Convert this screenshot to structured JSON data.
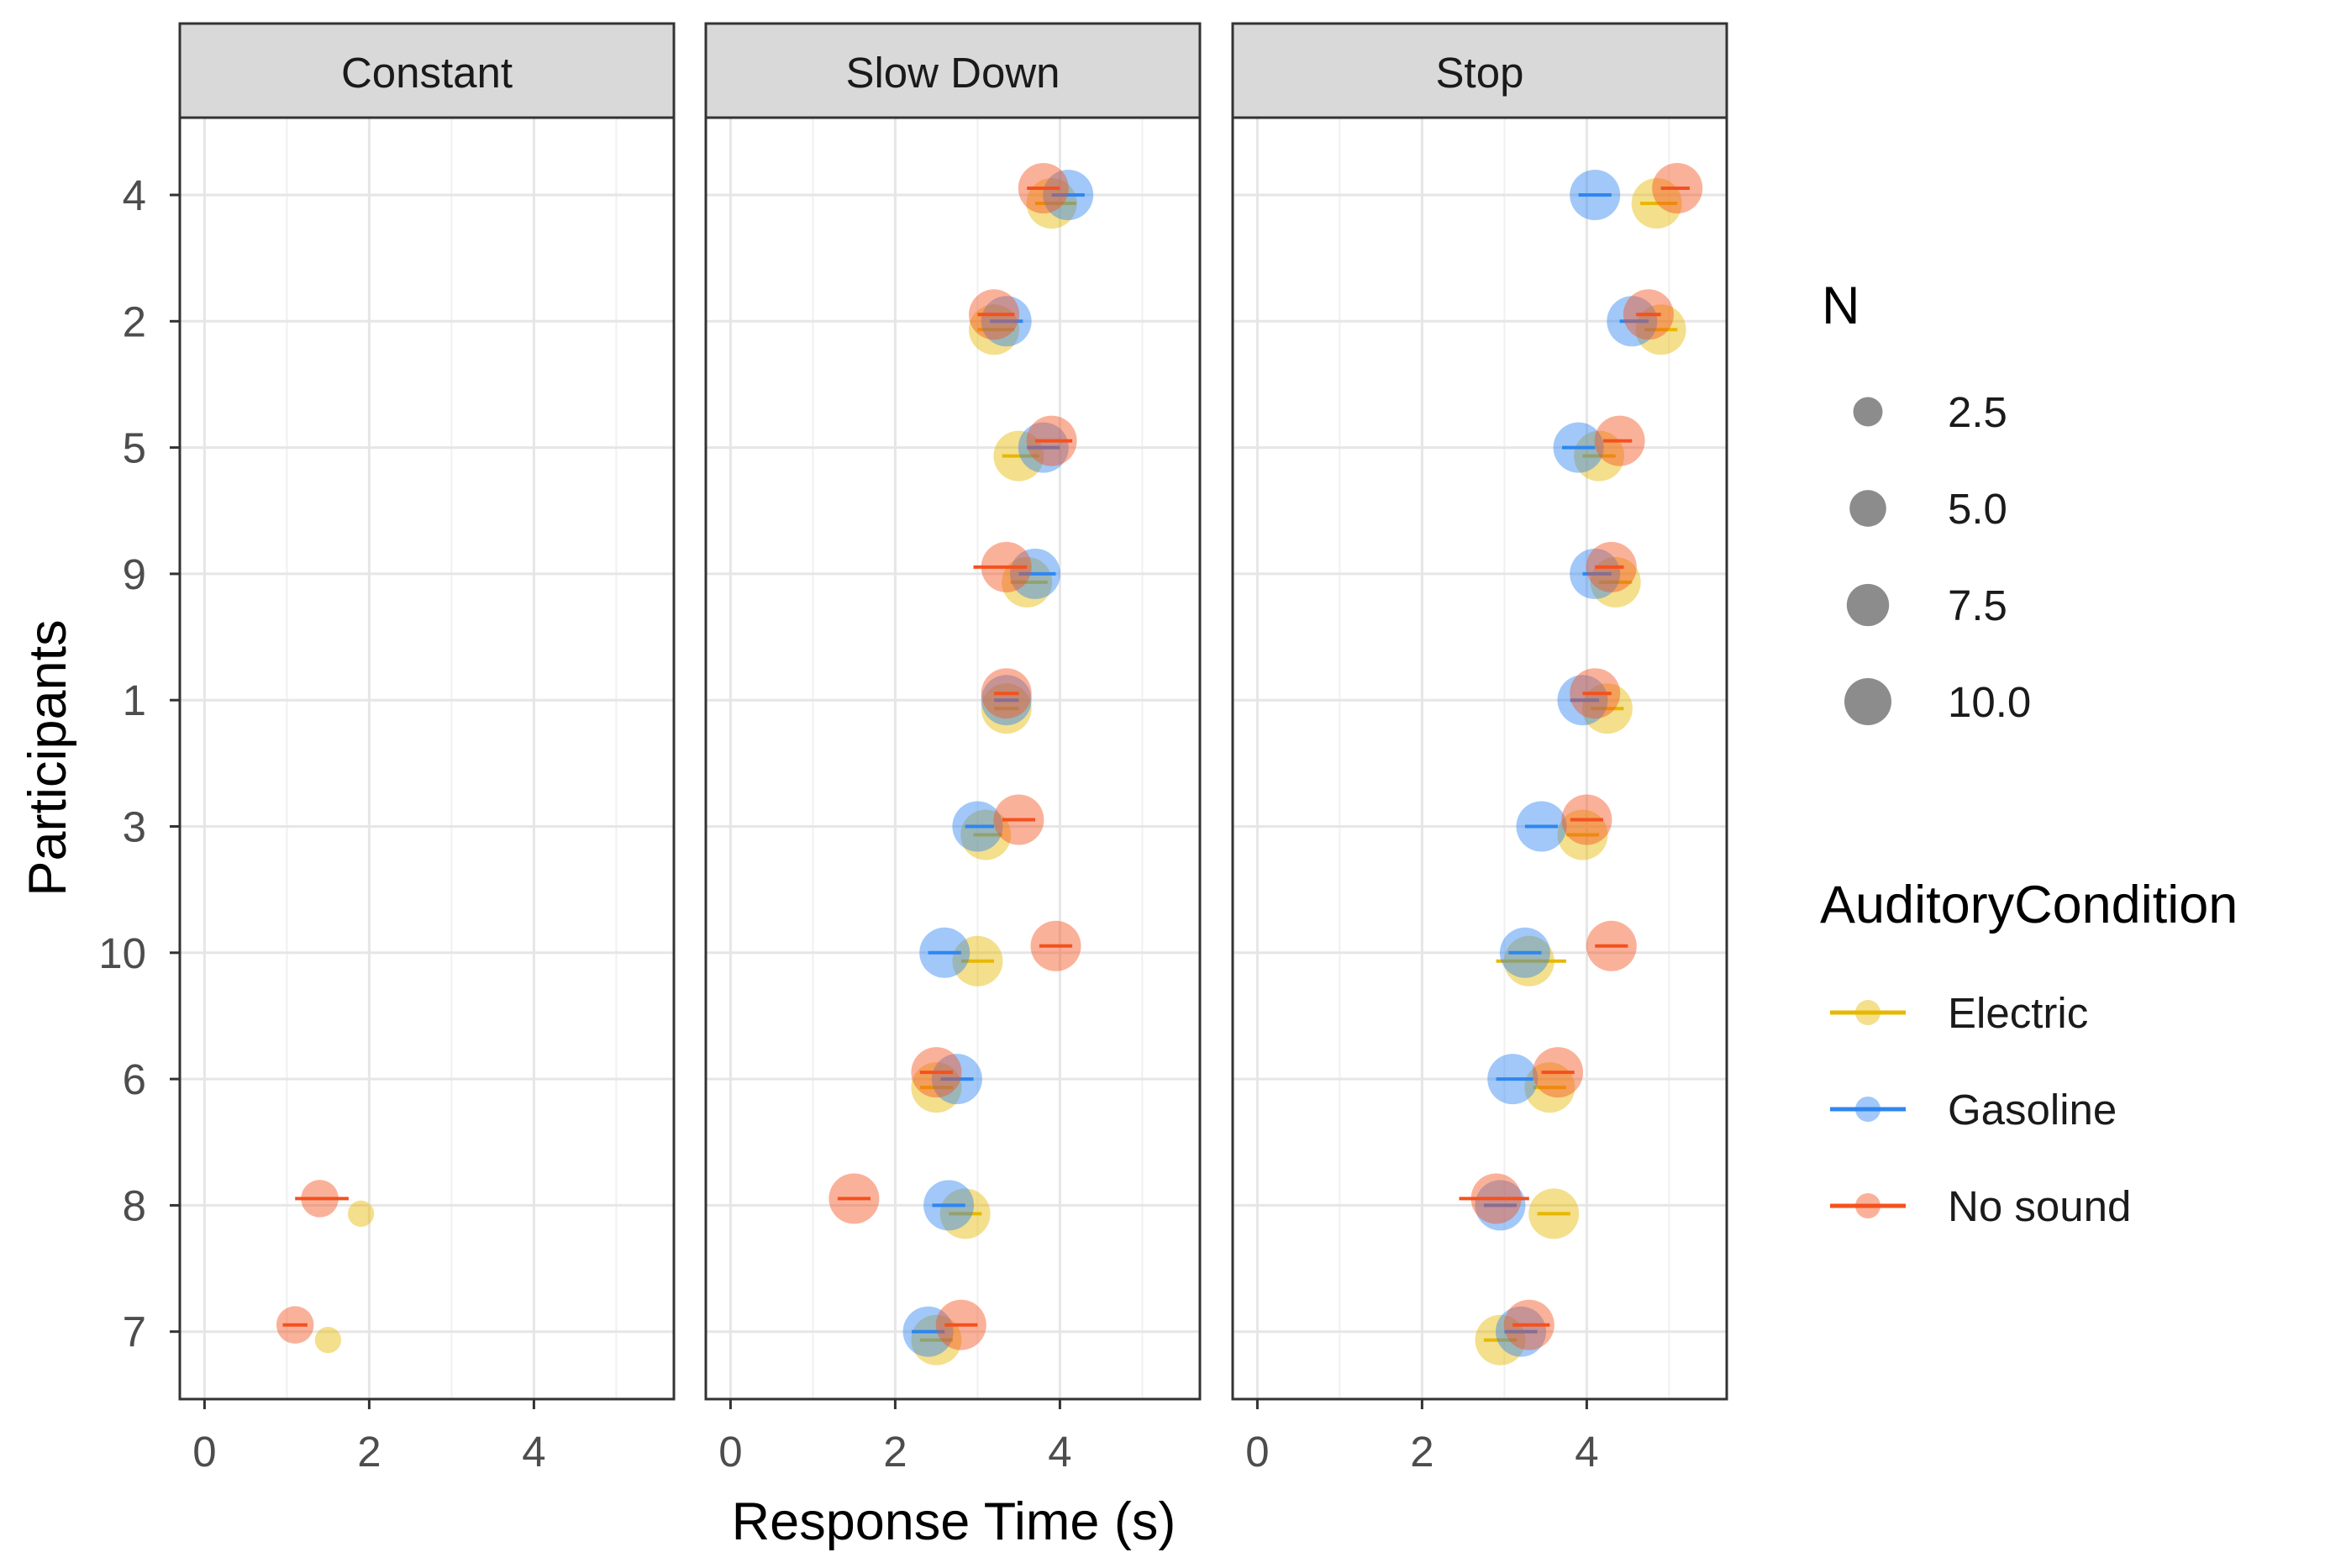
{
  "chart_data": {
    "type": "scatter",
    "xlabel": "Response Time (s)",
    "ylabel": "Participants",
    "xlim": [
      -0.3,
      5.7
    ],
    "x_ticks": [
      0,
      2,
      4
    ],
    "participants": [
      "4",
      "2",
      "5",
      "9",
      "1",
      "3",
      "10",
      "6",
      "8",
      "7"
    ],
    "panels": [
      "Constant",
      "Slow Down",
      "Stop"
    ],
    "size_legend": {
      "title": "N",
      "values": [
        "2.5",
        "5.0",
        "7.5",
        "10.0"
      ]
    },
    "color_legend": {
      "title": "AuditoryCondition",
      "entries": [
        {
          "name": "Electric",
          "color": "#E7B800"
        },
        {
          "name": "Gasoline",
          "color": "#2E86F0"
        },
        {
          "name": "No sound",
          "color": "#F4511E"
        }
      ]
    },
    "series": [
      {
        "panel": "Constant",
        "condition": "Electric",
        "participant": "8",
        "x": 1.9,
        "lo": 1.9,
        "hi": 1.9,
        "n": 1
      },
      {
        "panel": "Constant",
        "condition": "Electric",
        "participant": "7",
        "x": 1.5,
        "lo": 1.5,
        "hi": 1.5,
        "n": 1
      },
      {
        "panel": "Constant",
        "condition": "No sound",
        "participant": "8",
        "x": 1.4,
        "lo": 1.1,
        "hi": 1.75,
        "n": 4
      },
      {
        "panel": "Constant",
        "condition": "No sound",
        "participant": "7",
        "x": 1.1,
        "lo": 0.95,
        "hi": 1.25,
        "n": 4
      },
      {
        "panel": "Slow Down",
        "condition": "Electric",
        "participant": "4",
        "x": 3.9,
        "lo": 3.7,
        "hi": 4.2,
        "n": 10
      },
      {
        "panel": "Slow Down",
        "condition": "Electric",
        "participant": "2",
        "x": 3.2,
        "lo": 3.0,
        "hi": 3.45,
        "n": 10
      },
      {
        "panel": "Slow Down",
        "condition": "Electric",
        "participant": "5",
        "x": 3.5,
        "lo": 3.3,
        "hi": 3.75,
        "n": 10
      },
      {
        "panel": "Slow Down",
        "condition": "Electric",
        "participant": "9",
        "x": 3.6,
        "lo": 3.4,
        "hi": 3.85,
        "n": 10
      },
      {
        "panel": "Slow Down",
        "condition": "Electric",
        "participant": "1",
        "x": 3.35,
        "lo": 3.2,
        "hi": 3.5,
        "n": 10
      },
      {
        "panel": "Slow Down",
        "condition": "Electric",
        "participant": "3",
        "x": 3.1,
        "lo": 2.95,
        "hi": 3.3,
        "n": 10
      },
      {
        "panel": "Slow Down",
        "condition": "Electric",
        "participant": "10",
        "x": 3.0,
        "lo": 2.8,
        "hi": 3.2,
        "n": 10
      },
      {
        "panel": "Slow Down",
        "condition": "Electric",
        "participant": "6",
        "x": 2.5,
        "lo": 2.3,
        "hi": 2.7,
        "n": 10
      },
      {
        "panel": "Slow Down",
        "condition": "Electric",
        "participant": "8",
        "x": 2.85,
        "lo": 2.65,
        "hi": 3.05,
        "n": 10
      },
      {
        "panel": "Slow Down",
        "condition": "Electric",
        "participant": "7",
        "x": 2.5,
        "lo": 2.3,
        "hi": 2.7,
        "n": 10
      },
      {
        "panel": "Slow Down",
        "condition": "Gasoline",
        "participant": "4",
        "x": 4.1,
        "lo": 3.9,
        "hi": 4.3,
        "n": 10
      },
      {
        "panel": "Slow Down",
        "condition": "Gasoline",
        "participant": "2",
        "x": 3.35,
        "lo": 3.15,
        "hi": 3.55,
        "n": 10
      },
      {
        "panel": "Slow Down",
        "condition": "Gasoline",
        "participant": "5",
        "x": 3.8,
        "lo": 3.6,
        "hi": 4.0,
        "n": 10
      },
      {
        "panel": "Slow Down",
        "condition": "Gasoline",
        "participant": "9",
        "x": 3.7,
        "lo": 3.5,
        "hi": 3.95,
        "n": 10
      },
      {
        "panel": "Slow Down",
        "condition": "Gasoline",
        "participant": "1",
        "x": 3.35,
        "lo": 3.2,
        "hi": 3.5,
        "n": 10
      },
      {
        "panel": "Slow Down",
        "condition": "Gasoline",
        "participant": "3",
        "x": 3.0,
        "lo": 2.85,
        "hi": 3.2,
        "n": 10
      },
      {
        "panel": "Slow Down",
        "condition": "Gasoline",
        "participant": "10",
        "x": 2.6,
        "lo": 2.4,
        "hi": 2.8,
        "n": 10
      },
      {
        "panel": "Slow Down",
        "condition": "Gasoline",
        "participant": "6",
        "x": 2.75,
        "lo": 2.55,
        "hi": 2.95,
        "n": 10
      },
      {
        "panel": "Slow Down",
        "condition": "Gasoline",
        "participant": "8",
        "x": 2.65,
        "lo": 2.45,
        "hi": 2.85,
        "n": 10
      },
      {
        "panel": "Slow Down",
        "condition": "Gasoline",
        "participant": "7",
        "x": 2.4,
        "lo": 2.2,
        "hi": 2.6,
        "n": 10
      },
      {
        "panel": "Slow Down",
        "condition": "No sound",
        "participant": "4",
        "x": 3.8,
        "lo": 3.6,
        "hi": 4.0,
        "n": 10
      },
      {
        "panel": "Slow Down",
        "condition": "No sound",
        "participant": "2",
        "x": 3.2,
        "lo": 3.0,
        "hi": 3.45,
        "n": 10
      },
      {
        "panel": "Slow Down",
        "condition": "No sound",
        "participant": "5",
        "x": 3.9,
        "lo": 3.7,
        "hi": 4.15,
        "n": 10
      },
      {
        "panel": "Slow Down",
        "condition": "No sound",
        "participant": "9",
        "x": 3.35,
        "lo": 2.95,
        "hi": 3.6,
        "n": 10
      },
      {
        "panel": "Slow Down",
        "condition": "No sound",
        "participant": "1",
        "x": 3.35,
        "lo": 3.2,
        "hi": 3.5,
        "n": 10
      },
      {
        "panel": "Slow Down",
        "condition": "No sound",
        "participant": "3",
        "x": 3.5,
        "lo": 3.3,
        "hi": 3.7,
        "n": 10
      },
      {
        "panel": "Slow Down",
        "condition": "No sound",
        "participant": "10",
        "x": 3.95,
        "lo": 3.75,
        "hi": 4.15,
        "n": 10
      },
      {
        "panel": "Slow Down",
        "condition": "No sound",
        "participant": "6",
        "x": 2.5,
        "lo": 2.3,
        "hi": 2.7,
        "n": 10
      },
      {
        "panel": "Slow Down",
        "condition": "No sound",
        "participant": "8",
        "x": 1.5,
        "lo": 1.3,
        "hi": 1.7,
        "n": 10
      },
      {
        "panel": "Slow Down",
        "condition": "No sound",
        "participant": "7",
        "x": 2.8,
        "lo": 2.6,
        "hi": 3.0,
        "n": 10
      },
      {
        "panel": "Stop",
        "condition": "Electric",
        "participant": "4",
        "x": 4.85,
        "lo": 4.65,
        "hi": 5.1,
        "n": 10
      },
      {
        "panel": "Stop",
        "condition": "Electric",
        "participant": "2",
        "x": 4.9,
        "lo": 4.7,
        "hi": 5.1,
        "n": 10
      },
      {
        "panel": "Stop",
        "condition": "Electric",
        "participant": "5",
        "x": 4.15,
        "lo": 3.95,
        "hi": 4.35,
        "n": 10
      },
      {
        "panel": "Stop",
        "condition": "Electric",
        "participant": "9",
        "x": 4.35,
        "lo": 4.15,
        "hi": 4.55,
        "n": 10
      },
      {
        "panel": "Stop",
        "condition": "Electric",
        "participant": "1",
        "x": 4.25,
        "lo": 4.05,
        "hi": 4.45,
        "n": 10
      },
      {
        "panel": "Stop",
        "condition": "Electric",
        "participant": "3",
        "x": 3.95,
        "lo": 3.75,
        "hi": 4.15,
        "n": 10
      },
      {
        "panel": "Stop",
        "condition": "Electric",
        "participant": "10",
        "x": 3.3,
        "lo": 2.9,
        "hi": 3.75,
        "n": 10
      },
      {
        "panel": "Stop",
        "condition": "Electric",
        "participant": "6",
        "x": 3.55,
        "lo": 3.35,
        "hi": 3.75,
        "n": 10
      },
      {
        "panel": "Stop",
        "condition": "Electric",
        "participant": "8",
        "x": 3.6,
        "lo": 3.4,
        "hi": 3.8,
        "n": 10
      },
      {
        "panel": "Stop",
        "condition": "Electric",
        "participant": "7",
        "x": 2.95,
        "lo": 2.75,
        "hi": 3.15,
        "n": 10
      },
      {
        "panel": "Stop",
        "condition": "Gasoline",
        "participant": "4",
        "x": 4.1,
        "lo": 3.9,
        "hi": 4.3,
        "n": 10
      },
      {
        "panel": "Stop",
        "condition": "Gasoline",
        "participant": "2",
        "x": 4.55,
        "lo": 4.4,
        "hi": 4.75,
        "n": 10
      },
      {
        "panel": "Stop",
        "condition": "Gasoline",
        "participant": "5",
        "x": 3.9,
        "lo": 3.7,
        "hi": 4.1,
        "n": 10
      },
      {
        "panel": "Stop",
        "condition": "Gasoline",
        "participant": "9",
        "x": 4.1,
        "lo": 3.95,
        "hi": 4.3,
        "n": 10
      },
      {
        "panel": "Stop",
        "condition": "Gasoline",
        "participant": "1",
        "x": 3.95,
        "lo": 3.8,
        "hi": 4.15,
        "n": 10
      },
      {
        "panel": "Stop",
        "condition": "Gasoline",
        "participant": "3",
        "x": 3.45,
        "lo": 3.25,
        "hi": 3.65,
        "n": 10
      },
      {
        "panel": "Stop",
        "condition": "Gasoline",
        "participant": "10",
        "x": 3.25,
        "lo": 3.05,
        "hi": 3.45,
        "n": 10
      },
      {
        "panel": "Stop",
        "condition": "Gasoline",
        "participant": "6",
        "x": 3.1,
        "lo": 2.9,
        "hi": 3.35,
        "n": 10
      },
      {
        "panel": "Stop",
        "condition": "Gasoline",
        "participant": "8",
        "x": 2.95,
        "lo": 2.75,
        "hi": 3.15,
        "n": 10
      },
      {
        "panel": "Stop",
        "condition": "Gasoline",
        "participant": "7",
        "x": 3.2,
        "lo": 3.0,
        "hi": 3.4,
        "n": 10
      },
      {
        "panel": "Stop",
        "condition": "No sound",
        "participant": "4",
        "x": 5.1,
        "lo": 4.9,
        "hi": 5.25,
        "n": 10
      },
      {
        "panel": "Stop",
        "condition": "No sound",
        "participant": "2",
        "x": 4.75,
        "lo": 4.6,
        "hi": 4.9,
        "n": 10
      },
      {
        "panel": "Stop",
        "condition": "No sound",
        "participant": "5",
        "x": 4.4,
        "lo": 4.2,
        "hi": 4.55,
        "n": 10
      },
      {
        "panel": "Stop",
        "condition": "No sound",
        "participant": "9",
        "x": 4.3,
        "lo": 4.1,
        "hi": 4.45,
        "n": 10
      },
      {
        "panel": "Stop",
        "condition": "No sound",
        "participant": "1",
        "x": 4.1,
        "lo": 3.95,
        "hi": 4.3,
        "n": 10
      },
      {
        "panel": "Stop",
        "condition": "No sound",
        "participant": "3",
        "x": 4.0,
        "lo": 3.8,
        "hi": 4.2,
        "n": 10
      },
      {
        "panel": "Stop",
        "condition": "No sound",
        "participant": "10",
        "x": 4.3,
        "lo": 4.1,
        "hi": 4.5,
        "n": 10
      },
      {
        "panel": "Stop",
        "condition": "No sound",
        "participant": "6",
        "x": 3.65,
        "lo": 3.45,
        "hi": 3.85,
        "n": 10
      },
      {
        "panel": "Stop",
        "condition": "No sound",
        "participant": "8",
        "x": 2.9,
        "lo": 2.45,
        "hi": 3.3,
        "n": 10
      },
      {
        "panel": "Stop",
        "condition": "No sound",
        "participant": "7",
        "x": 3.3,
        "lo": 3.1,
        "hi": 3.55,
        "n": 10
      }
    ]
  }
}
